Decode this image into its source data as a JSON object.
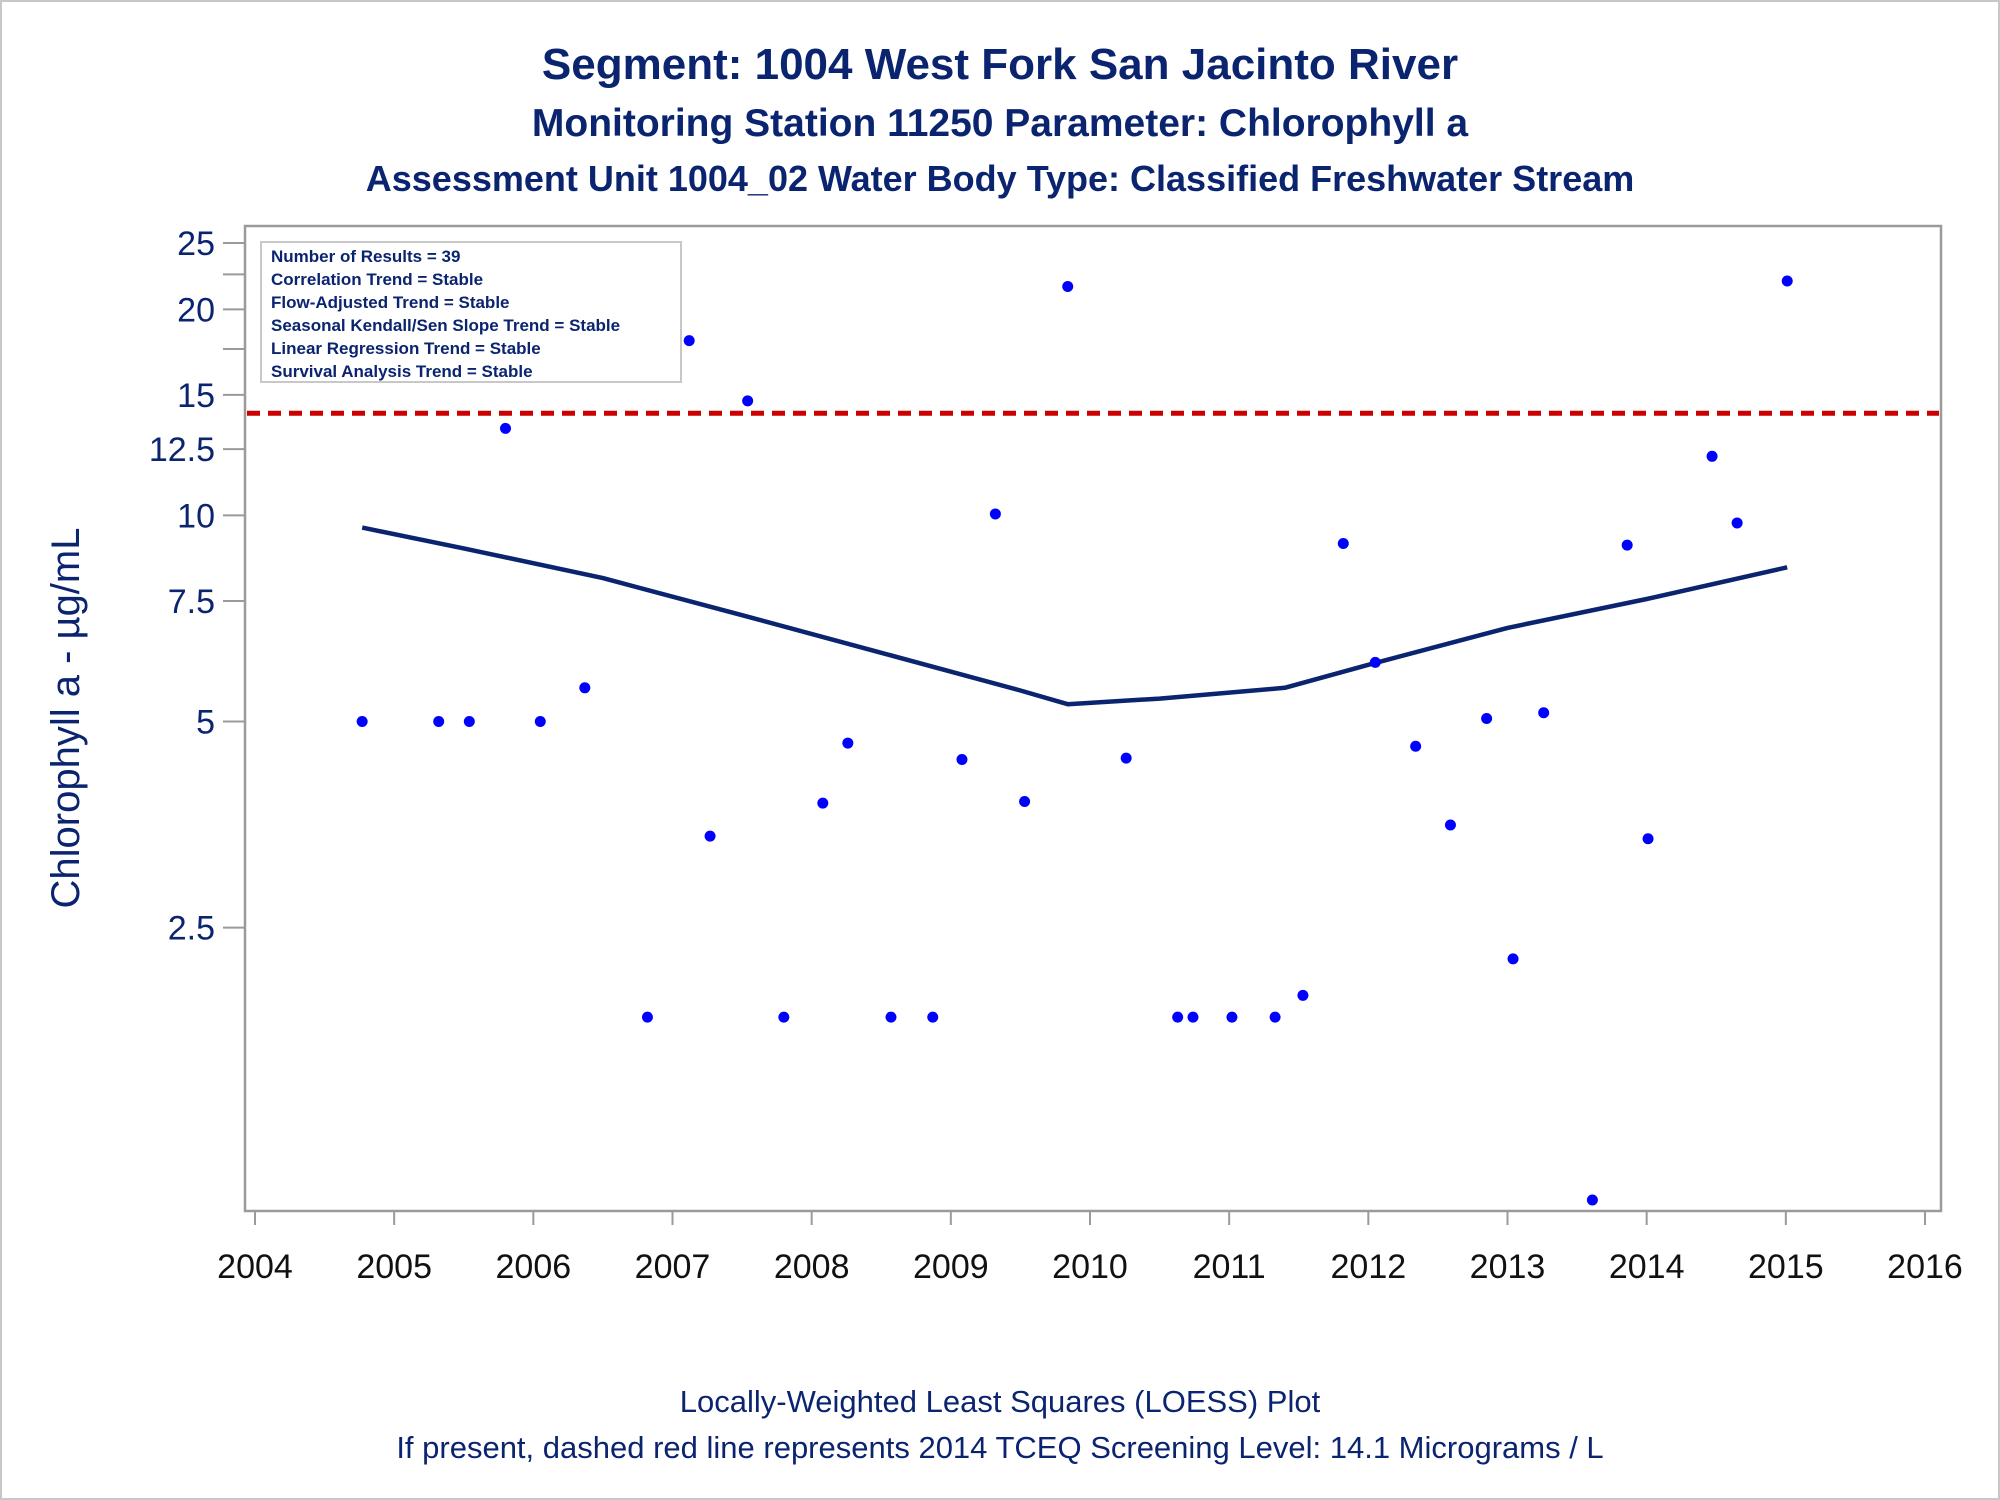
{
  "title_line1": "Segment: 1004  West Fork San Jacinto River",
  "title_line2": "Monitoring Station 11250 Parameter: Chlorophyll a",
  "title_line3": "Assessment Unit 1004_02   Water Body Type: Classified Freshwater Stream",
  "footnote_line1": "Locally-Weighted Least Squares (LOESS) Plot",
  "footnote_line2": "If present, dashed red line represents 2014 TCEQ Screening Level: 14.1 Micrograms / L",
  "colors": {
    "text": "#0b2470",
    "points": "#0000ff",
    "loess": "#0b2470",
    "screening": "#cc0000"
  },
  "chart_data": {
    "type": "scatter",
    "title": "Segment: 1004  West Fork San Jacinto River",
    "ylabel": "Chlorophyll a -  µg/mL",
    "xlabel": "",
    "y_scale": "log",
    "xlim": [
      2004,
      2016
    ],
    "ylim": [
      0.95,
      25.5
    ],
    "x_ticks": [
      "2004",
      "2005",
      "2006",
      "2007",
      "2008",
      "2009",
      "2010",
      "2011",
      "2012",
      "2013",
      "2014",
      "2015",
      "2016"
    ],
    "y_ticks": [
      {
        "value": 2.5,
        "label": "2.5"
      },
      {
        "value": 5,
        "label": "5"
      },
      {
        "value": 7.5,
        "label": "7.5"
      },
      {
        "value": 10,
        "label": "10"
      },
      {
        "value": 12.5,
        "label": "12.5"
      },
      {
        "value": 15,
        "label": "15"
      },
      {
        "value": 20,
        "label": "20"
      },
      {
        "value": 25,
        "label": "25"
      }
    ],
    "y_minor_ticks": [
      17.5,
      22.5
    ],
    "grid": false,
    "screening_level": 14.1,
    "stats_box": {
      "position": "top-left",
      "lines": [
        "Number of Results = 39",
        "Correlation Trend = Stable",
        "Flow-Adjusted Trend = Stable",
        "Seasonal Kendall/Sen Slope Trend = Stable",
        "Linear Regression Trend = Stable",
        "Survival Analysis Trend = Stable"
      ]
    },
    "points": [
      {
        "x": 2004.77,
        "y": 5.0
      },
      {
        "x": 2005.05,
        "y": 24.5
      },
      {
        "x": 2005.32,
        "y": 5.0
      },
      {
        "x": 2005.54,
        "y": 5.0
      },
      {
        "x": 2005.8,
        "y": 13.4
      },
      {
        "x": 2006.05,
        "y": 5.0
      },
      {
        "x": 2006.37,
        "y": 5.6
      },
      {
        "x": 2006.82,
        "y": 1.85
      },
      {
        "x": 2007.12,
        "y": 18.0
      },
      {
        "x": 2007.27,
        "y": 3.4
      },
      {
        "x": 2007.54,
        "y": 14.7
      },
      {
        "x": 2007.8,
        "y": 1.85
      },
      {
        "x": 2008.08,
        "y": 3.8
      },
      {
        "x": 2008.26,
        "y": 4.65
      },
      {
        "x": 2008.57,
        "y": 1.85
      },
      {
        "x": 2008.87,
        "y": 1.85
      },
      {
        "x": 2009.08,
        "y": 4.4
      },
      {
        "x": 2009.32,
        "y": 10.05
      },
      {
        "x": 2009.53,
        "y": 3.82
      },
      {
        "x": 2009.84,
        "y": 21.6
      },
      {
        "x": 2010.26,
        "y": 4.42
      },
      {
        "x": 2010.63,
        "y": 1.85
      },
      {
        "x": 2010.74,
        "y": 1.85
      },
      {
        "x": 2011.02,
        "y": 1.85
      },
      {
        "x": 2011.33,
        "y": 1.85
      },
      {
        "x": 2011.53,
        "y": 1.99
      },
      {
        "x": 2011.82,
        "y": 9.1
      },
      {
        "x": 2012.05,
        "y": 6.1
      },
      {
        "x": 2012.34,
        "y": 4.6
      },
      {
        "x": 2012.59,
        "y": 3.53
      },
      {
        "x": 2012.85,
        "y": 5.05
      },
      {
        "x": 2013.04,
        "y": 2.25
      },
      {
        "x": 2013.26,
        "y": 5.15
      },
      {
        "x": 2013.61,
        "y": 1.0
      },
      {
        "x": 2013.86,
        "y": 9.05
      },
      {
        "x": 2014.01,
        "y": 3.37
      },
      {
        "x": 2014.47,
        "y": 12.2
      },
      {
        "x": 2014.65,
        "y": 9.75
      },
      {
        "x": 2015.01,
        "y": 22.0
      }
    ],
    "loess": [
      {
        "x": 2004.77,
        "y": 9.6
      },
      {
        "x": 2005.5,
        "y": 8.95
      },
      {
        "x": 2006.5,
        "y": 8.1
      },
      {
        "x": 2007.5,
        "y": 7.15
      },
      {
        "x": 2008.5,
        "y": 6.3
      },
      {
        "x": 2009.5,
        "y": 5.55
      },
      {
        "x": 2009.84,
        "y": 5.3
      },
      {
        "x": 2010.5,
        "y": 5.4
      },
      {
        "x": 2011.4,
        "y": 5.6
      },
      {
        "x": 2012.0,
        "y": 6.05
      },
      {
        "x": 2013.0,
        "y": 6.85
      },
      {
        "x": 2014.0,
        "y": 7.55
      },
      {
        "x": 2015.01,
        "y": 8.4
      }
    ]
  }
}
